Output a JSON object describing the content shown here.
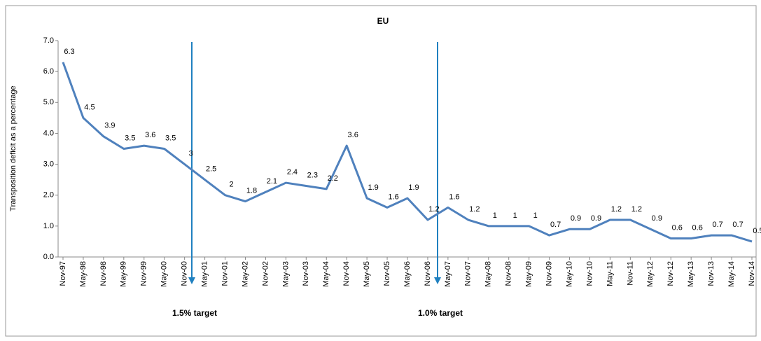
{
  "chart_data": {
    "type": "line",
    "title": "EU",
    "y_label": "Transposition deficit as a percentage",
    "categories": [
      "Nov-97",
      "May-98",
      "Nov-98",
      "May-99",
      "Nov-99",
      "May-00",
      "Nov-00",
      "May-01",
      "Nov-01",
      "May-02",
      "Nov-02",
      "May-03",
      "Nov-03",
      "May-04",
      "Nov-04",
      "May-05",
      "Nov-05",
      "May-06",
      "Nov-06",
      "May-07",
      "Nov-07",
      "May-08",
      "Nov-08",
      "May-09",
      "Nov-09",
      "May-10",
      "Nov-10",
      "May-11",
      "Nov-11",
      "May-12",
      "Nov-12",
      "May-13",
      "Nov-13",
      "May-14",
      "Nov-14"
    ],
    "series": [
      {
        "name": "EU",
        "color": "#4f81bd",
        "values": [
          6.3,
          4.5,
          3.9,
          3.5,
          3.6,
          3.5,
          3,
          2.5,
          2,
          1.8,
          2.1,
          2.4,
          2.3,
          2.2,
          3.6,
          1.9,
          1.6,
          1.9,
          1.2,
          1.6,
          1.2,
          1,
          1,
          1,
          0.7,
          0.9,
          0.9,
          1.2,
          1.2,
          0.9,
          0.6,
          0.6,
          0.7,
          0.7,
          0.5
        ]
      }
    ],
    "ylim": [
      0,
      7
    ],
    "yticks": [
      {
        "value": 0,
        "label": "0.0"
      },
      {
        "value": 1,
        "label": "1.0"
      },
      {
        "value": 2,
        "label": "2.0"
      },
      {
        "value": 3,
        "label": "3.0"
      },
      {
        "value": 4,
        "label": "4.0"
      },
      {
        "value": 5,
        "label": "5.0"
      },
      {
        "value": 6,
        "label": "6.0"
      },
      {
        "value": 7,
        "label": "7.0"
      }
    ],
    "annotations": [
      "1.5% target",
      "1.0% target"
    ],
    "annotation_color": "#1f80c0"
  }
}
